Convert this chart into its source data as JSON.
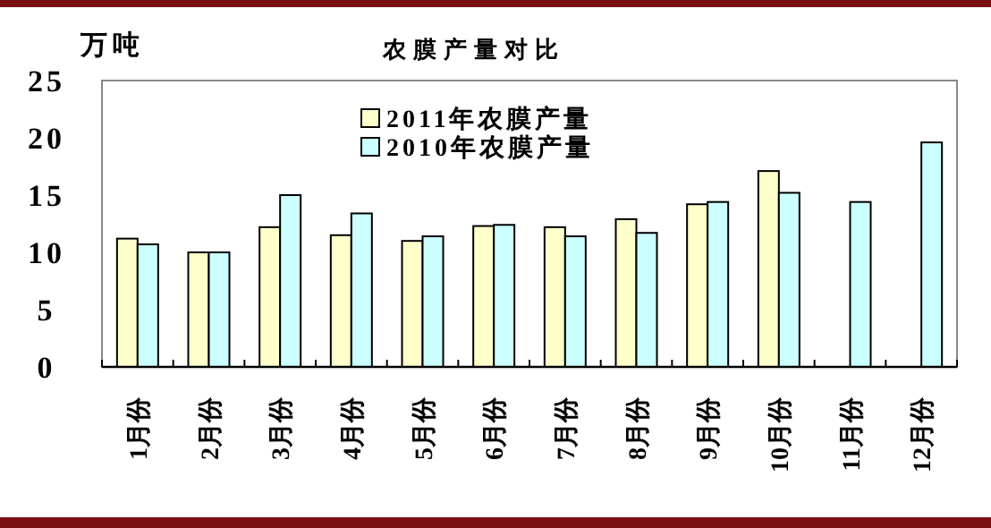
{
  "chart_data": {
    "type": "bar",
    "title": "农膜产量对比",
    "ylabel": "万吨",
    "categories": [
      "1月份",
      "2月份",
      "3月份",
      "4月份",
      "5月份",
      "6月份",
      "7月份",
      "8月份",
      "9月份",
      "10月份",
      "11月份",
      "12月份"
    ],
    "series": [
      {
        "name": "2011年农膜产量",
        "color": "#ffffcc",
        "values": [
          11.2,
          10.0,
          12.2,
          11.5,
          11.0,
          12.3,
          12.2,
          12.9,
          14.2,
          17.1,
          null,
          null
        ]
      },
      {
        "name": "2010年农膜产量",
        "color": "#ccffff",
        "values": [
          10.7,
          10.0,
          15.0,
          13.4,
          11.4,
          12.4,
          11.4,
          11.7,
          14.4,
          15.2,
          14.4,
          19.6
        ]
      }
    ],
    "ylim": [
      0,
      25
    ],
    "yticks": [
      0,
      5,
      10,
      15,
      20,
      25
    ],
    "grid": false,
    "legend": "top left"
  }
}
